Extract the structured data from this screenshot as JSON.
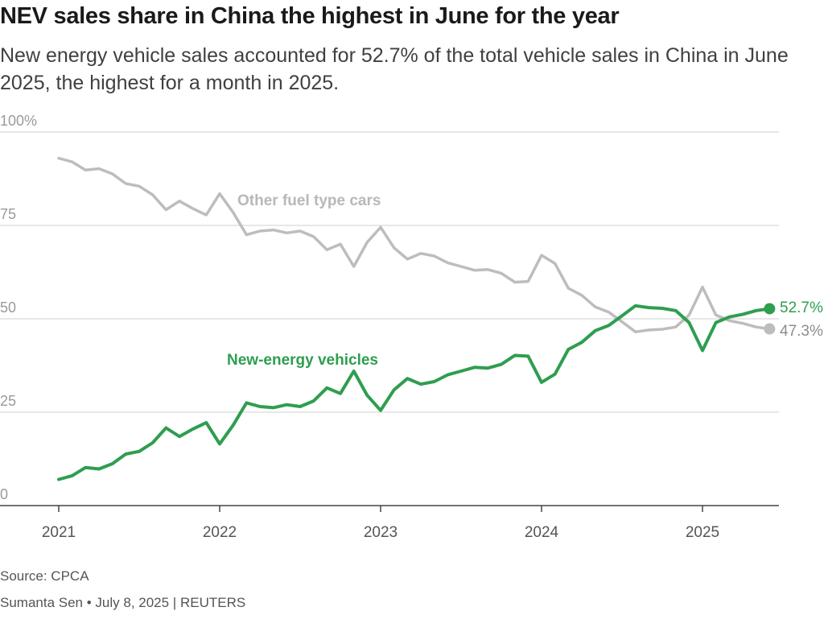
{
  "title": "NEV sales share in China the highest in June for the year",
  "subtitle": "New energy vehicle sales accounted for 52.7% of the total vehicle sales in China in June 2025, the highest for a month in 2025.",
  "source": "Source: CPCA",
  "credit": "Sumanta Sen • July 8, 2025 | REUTERS",
  "chart_data": {
    "type": "line",
    "x_start": "2021-01",
    "x_ticks": [
      "2021",
      "2022",
      "2023",
      "2024",
      "2025"
    ],
    "y_ticks": [
      "0",
      "25",
      "50",
      "75",
      "100%"
    ],
    "ylim": [
      0,
      100
    ],
    "grid": true,
    "series": [
      {
        "name": "New-energy vehicles",
        "color": "#2e9e4f",
        "end_label": "52.7%",
        "values": [
          7,
          8,
          10.2,
          9.8,
          11.2,
          13.8,
          14.5,
          16.8,
          20.8,
          18.5,
          20.5,
          22.2,
          16.5,
          21.5,
          27.5,
          26.5,
          26.2,
          27,
          26.5,
          28,
          31.5,
          30,
          36,
          29.5,
          25.5,
          31,
          34,
          32.5,
          33.2,
          35,
          36,
          37,
          36.8,
          37.8,
          40.2,
          40,
          33,
          35.2,
          41.8,
          43.7,
          46.8,
          48.2,
          50.8,
          53.5,
          53,
          52.8,
          52.2,
          49,
          41.5,
          49,
          50.5,
          51.2,
          52.2,
          52.7
        ]
      },
      {
        "name": "Other fuel type cars",
        "color": "#bdbdbd",
        "end_label": "47.3%",
        "values": [
          93,
          92,
          89.8,
          90.2,
          88.8,
          86.2,
          85.5,
          83.2,
          79.2,
          81.5,
          79.5,
          77.8,
          83.5,
          78.5,
          72.5,
          73.5,
          73.8,
          73,
          73.5,
          72,
          68.5,
          70,
          64,
          70.5,
          74.5,
          69,
          66,
          67.5,
          66.8,
          65,
          64,
          63,
          63.2,
          62.2,
          59.8,
          60,
          67,
          64.8,
          58.2,
          56.3,
          53.2,
          51.8,
          49.2,
          46.5,
          47,
          47.2,
          47.8,
          51,
          58.5,
          51,
          49.5,
          48.8,
          47.8,
          47.3
        ]
      }
    ]
  }
}
